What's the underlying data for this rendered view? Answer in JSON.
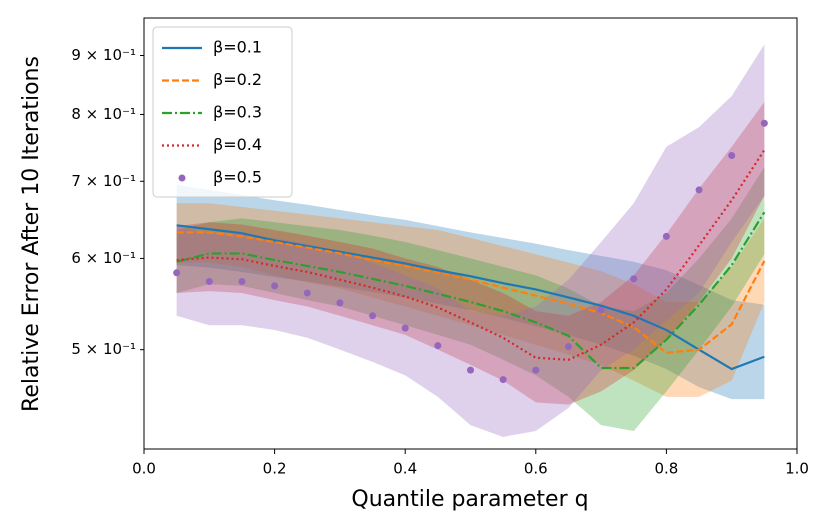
{
  "chart_data": {
    "type": "line",
    "xlabel": "Quantile parameter q",
    "ylabel": "Relative Error After 10 Iterations",
    "yscale": "log",
    "x": [
      0.05,
      0.1,
      0.15,
      0.2,
      0.25,
      0.3,
      0.35,
      0.4,
      0.45,
      0.5,
      0.55,
      0.6,
      0.65,
      0.7,
      0.75,
      0.8,
      0.85,
      0.9,
      0.95
    ],
    "xlim": [
      0,
      1
    ],
    "xticks": [
      {
        "value": 0,
        "label": "0.0"
      },
      0.2,
      0.4,
      0.6,
      0.8,
      {
        "value": 1,
        "label": "1.0"
      }
    ],
    "ylim": [
      0.41,
      0.97
    ],
    "yticks": [
      {
        "value": 0.5,
        "label": "5 × 10⁻¹"
      },
      {
        "value": 0.6,
        "label": "6 × 10⁻¹"
      },
      {
        "value": 0.7,
        "label": "7 × 10⁻¹"
      },
      {
        "value": 0.8,
        "label": "8 × 10⁻¹"
      },
      {
        "value": 0.9,
        "label": "9 × 10⁻¹"
      }
    ],
    "legend": "upper left",
    "series": [
      {
        "name": "β=0.1",
        "color": "#1f77b4",
        "linestyle": "solid",
        "values": [
          0.641,
          0.636,
          0.631,
          0.622,
          0.615,
          0.608,
          0.601,
          0.594,
          0.586,
          0.579,
          0.571,
          0.564,
          0.555,
          0.546,
          0.535,
          0.52,
          0.5,
          0.481,
          0.493
        ],
        "upper": [
          0.695,
          0.688,
          0.681,
          0.674,
          0.668,
          0.661,
          0.654,
          0.648,
          0.64,
          0.632,
          0.625,
          0.618,
          0.61,
          0.603,
          0.596,
          0.586,
          0.569,
          0.552,
          0.547
        ],
        "lower": [
          0.592,
          0.589,
          0.584,
          0.578,
          0.573,
          0.567,
          0.561,
          0.555,
          0.548,
          0.541,
          0.533,
          0.524,
          0.515,
          0.505,
          0.494,
          0.481,
          0.464,
          0.453,
          0.453
        ]
      },
      {
        "name": "β=0.2",
        "color": "#ff7f0e",
        "linestyle": "dashed",
        "values": [
          0.632,
          0.632,
          0.627,
          0.62,
          0.613,
          0.606,
          0.598,
          0.591,
          0.583,
          0.575,
          0.566,
          0.557,
          0.548,
          0.538,
          0.523,
          0.497,
          0.5,
          0.526,
          0.597
        ],
        "upper": [
          0.67,
          0.67,
          0.665,
          0.66,
          0.655,
          0.65,
          0.645,
          0.64,
          0.635,
          0.625,
          0.615,
          0.605,
          0.595,
          0.585,
          0.57,
          0.55,
          0.55,
          0.59,
          0.65
        ],
        "lower": [
          0.595,
          0.595,
          0.59,
          0.58,
          0.572,
          0.565,
          0.555,
          0.545,
          0.535,
          0.525,
          0.515,
          0.505,
          0.495,
          0.485,
          0.47,
          0.455,
          0.455,
          0.47,
          0.55
        ]
      },
      {
        "name": "β=0.3",
        "color": "#2ca02c",
        "linestyle": "dashdot",
        "values": [
          0.596,
          0.606,
          0.606,
          0.598,
          0.591,
          0.584,
          0.576,
          0.568,
          0.559,
          0.55,
          0.54,
          0.528,
          0.514,
          0.482,
          0.482,
          0.51,
          0.547,
          0.592,
          0.658
        ],
        "upper": [
          0.635,
          0.645,
          0.65,
          0.645,
          0.64,
          0.635,
          0.628,
          0.62,
          0.61,
          0.6,
          0.59,
          0.58,
          0.565,
          0.545,
          0.54,
          0.56,
          0.6,
          0.65,
          0.72
        ],
        "lower": [
          0.56,
          0.57,
          0.568,
          0.56,
          0.552,
          0.545,
          0.535,
          0.525,
          0.515,
          0.505,
          0.49,
          0.475,
          0.455,
          0.43,
          0.425,
          0.46,
          0.5,
          0.545,
          0.605
        ]
      },
      {
        "name": "β=0.4",
        "color": "#d62728",
        "linestyle": "dotted",
        "values": [
          0.598,
          0.601,
          0.599,
          0.591,
          0.584,
          0.575,
          0.566,
          0.556,
          0.544,
          0.528,
          0.512,
          0.492,
          0.49,
          0.505,
          0.528,
          0.564,
          0.616,
          0.674,
          0.745
        ],
        "upper": [
          0.64,
          0.645,
          0.642,
          0.635,
          0.628,
          0.62,
          0.612,
          0.6,
          0.59,
          0.575,
          0.56,
          0.54,
          0.535,
          0.55,
          0.58,
          0.63,
          0.69,
          0.75,
          0.82
        ],
        "lower": [
          0.56,
          0.562,
          0.56,
          0.552,
          0.545,
          0.535,
          0.525,
          0.515,
          0.5,
          0.485,
          0.47,
          0.45,
          0.448,
          0.46,
          0.48,
          0.51,
          0.55,
          0.6,
          0.68
        ]
      },
      {
        "name": "β=0.5",
        "color": "#9467bd",
        "linestyle": "none",
        "marker": "o",
        "values": [
          0.583,
          0.573,
          0.573,
          0.568,
          0.56,
          0.549,
          0.535,
          0.522,
          0.504,
          0.48,
          0.471,
          0.48,
          0.503,
          0.541,
          0.576,
          0.627,
          0.688,
          0.737,
          0.786
        ],
        "upper": [
          0.64,
          0.63,
          0.63,
          0.625,
          0.618,
          0.608,
          0.595,
          0.58,
          0.565,
          0.54,
          0.535,
          0.545,
          0.575,
          0.62,
          0.67,
          0.75,
          0.78,
          0.83,
          0.92
        ],
        "lower": [
          0.535,
          0.525,
          0.525,
          0.52,
          0.512,
          0.5,
          0.488,
          0.475,
          0.455,
          0.43,
          0.42,
          0.425,
          0.445,
          0.48,
          0.5,
          0.53,
          0.56,
          0.62,
          0.68
        ]
      }
    ]
  }
}
